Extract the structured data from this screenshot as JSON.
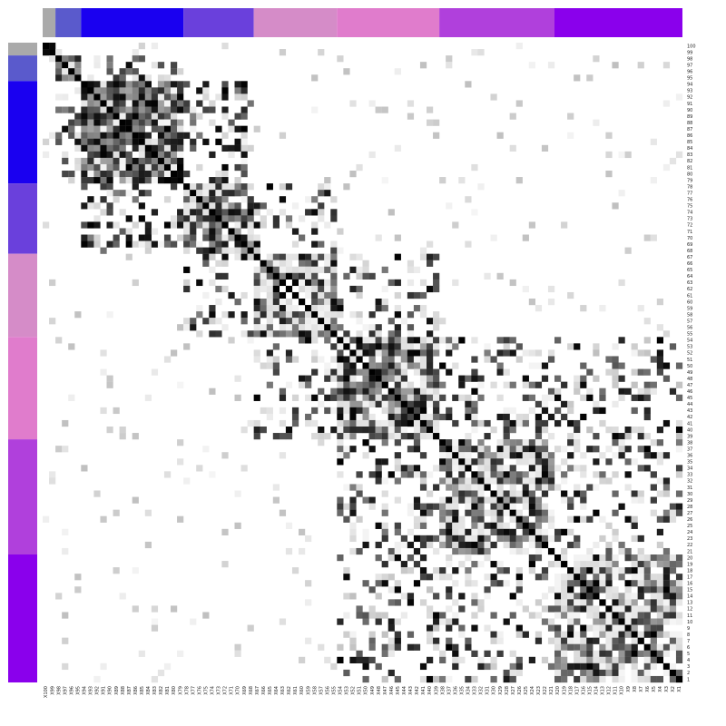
{
  "chart_data": {
    "type": "heatmap",
    "title": "",
    "xlabel": "",
    "ylabel": "",
    "grid": false,
    "legend": "none",
    "color_scale": {
      "low": "#ffffff",
      "high": "#000000",
      "range": [
        0,
        1
      ]
    },
    "x_ticks": [
      "X100",
      "X99",
      "X98",
      "X97",
      "X96",
      "X95",
      "X94",
      "X93",
      "X92",
      "X91",
      "X90",
      "X89",
      "X88",
      "X87",
      "X86",
      "X85",
      "X84",
      "X83",
      "X82",
      "X81",
      "X80",
      "X79",
      "X78",
      "X77",
      "X76",
      "X75",
      "X74",
      "X73",
      "X72",
      "X71",
      "X70",
      "X69",
      "X68",
      "X67",
      "X66",
      "X65",
      "X64",
      "X63",
      "X62",
      "X61",
      "X60",
      "X59",
      "X58",
      "X57",
      "X56",
      "X55",
      "X54",
      "X53",
      "X52",
      "X51",
      "X50",
      "X49",
      "X48",
      "X47",
      "X46",
      "X45",
      "X44",
      "X43",
      "X42",
      "X41",
      "X40",
      "X39",
      "X38",
      "X37",
      "X36",
      "X35",
      "X34",
      "X33",
      "X32",
      "X31",
      "X30",
      "X29",
      "X28",
      "X27",
      "X26",
      "X25",
      "X24",
      "X23",
      "X22",
      "X21",
      "X20",
      "X19",
      "X18",
      "X17",
      "X16",
      "X15",
      "X14",
      "X13",
      "X12",
      "X11",
      "X10",
      "X9",
      "X8",
      "X7",
      "X6",
      "X5",
      "X4",
      "X3",
      "X2",
      "X1"
    ],
    "y_ticks": [
      "100",
      "99",
      "98",
      "97",
      "96",
      "95",
      "94",
      "93",
      "92",
      "91",
      "90",
      "89",
      "88",
      "87",
      "86",
      "85",
      "84",
      "83",
      "82",
      "81",
      "80",
      "79",
      "78",
      "77",
      "76",
      "75",
      "74",
      "73",
      "72",
      "71",
      "70",
      "69",
      "68",
      "67",
      "66",
      "65",
      "64",
      "63",
      "62",
      "61",
      "60",
      "59",
      "58",
      "57",
      "56",
      "55",
      "54",
      "53",
      "52",
      "51",
      "50",
      "49",
      "48",
      "47",
      "46",
      "45",
      "44",
      "43",
      "42",
      "41",
      "40",
      "39",
      "38",
      "37",
      "36",
      "35",
      "34",
      "33",
      "32",
      "31",
      "30",
      "29",
      "28",
      "27",
      "26",
      "25",
      "24",
      "23",
      "22",
      "21",
      "20",
      "19",
      "18",
      "17",
      "16",
      "15",
      "14",
      "13",
      "12",
      "11",
      "10",
      "9",
      "8",
      "7",
      "6",
      "5",
      "4",
      "3",
      "2",
      "1"
    ],
    "clusters": [
      {
        "start": 0,
        "end": 2,
        "color": "#aaaaaa",
        "strength": 0.95
      },
      {
        "start": 2,
        "end": 6,
        "color": "#5a5acc",
        "strength": 0.9
      },
      {
        "start": 6,
        "end": 22,
        "color": "#1a00f0",
        "strength": 0.75
      },
      {
        "start": 22,
        "end": 33,
        "color": "#6a40dc",
        "strength": 0.55
      },
      {
        "start": 33,
        "end": 46,
        "color": "#d58cc8",
        "strength": 0.35
      },
      {
        "start": 46,
        "end": 62,
        "color": "#e07ccc",
        "strength": 0.65
      },
      {
        "start": 62,
        "end": 80,
        "color": "#b040dc",
        "strength": 0.55
      },
      {
        "start": 80,
        "end": 100,
        "color": "#8a00ec",
        "strength": 0.45
      }
    ]
  }
}
